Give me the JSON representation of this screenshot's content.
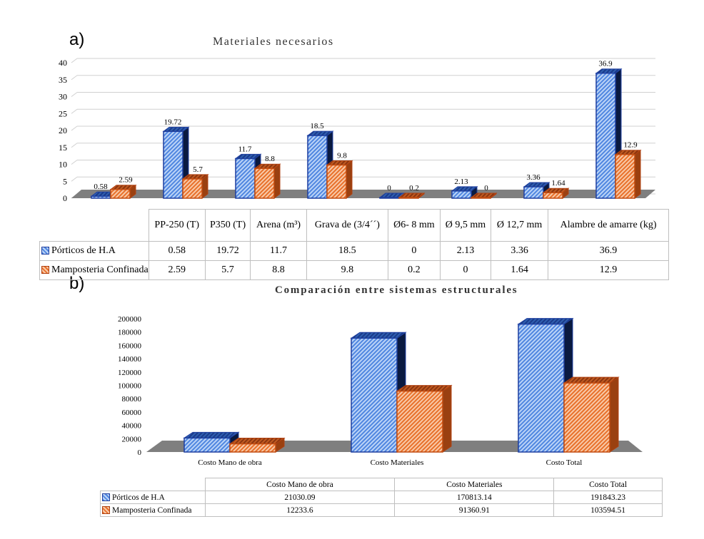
{
  "panels": {
    "a": "a)",
    "b": "b)"
  },
  "colors": {
    "blue": "#4f86e0",
    "blue_dark": "#1f3f9f",
    "orange": "#e8702a",
    "orange_dark": "#b04010",
    "floor": "#808080"
  },
  "chart_data": [
    {
      "type": "bar",
      "title": "Materiales necesarios",
      "categories": [
        "PP-250 (T)",
        "P350 (T)",
        "Arena (m³)",
        "Grava de (3/4´´)",
        "Ø6- 8 mm",
        "Ø 9,5 mm",
        "Ø 12,7 mm",
        "Alambre de amarre (kg)"
      ],
      "series": [
        {
          "name": "Pórticos de H.A",
          "values": [
            0.58,
            19.72,
            11.7,
            18.5,
            0,
            2.13,
            3.36,
            36.9
          ],
          "labels": [
            "0.58",
            "19.72",
            "11.7",
            "18.5",
            "0",
            "2.13",
            "3.36",
            "36.9"
          ]
        },
        {
          "name": "Mamposteria Confinada",
          "values": [
            2.59,
            5.7,
            8.8,
            9.8,
            0.2,
            0,
            1.64,
            12.9
          ],
          "labels": [
            "2.59",
            "5.7",
            "8.8",
            "9.8",
            "0.2",
            "0",
            "1.64",
            "12.9"
          ]
        }
      ],
      "ylim": [
        0,
        40
      ],
      "yticks": [
        "0",
        "5",
        "10",
        "15",
        "20",
        "25",
        "30",
        "35",
        "40"
      ],
      "grid": true,
      "legend": "data-table"
    },
    {
      "type": "bar",
      "title": "Comparación entre sistemas estructurales",
      "categories": [
        "Costo Mano de obra",
        "Costo Materiales",
        "Costo Total"
      ],
      "series": [
        {
          "name": "Pórticos de H.A",
          "values": [
            21030.09,
            170813.14,
            191843.23
          ],
          "labels": [
            "21030.09",
            "170813.14",
            "191843.23"
          ]
        },
        {
          "name": "Mamposteria Confinada",
          "values": [
            12233.6,
            91360.91,
            103594.51
          ],
          "labels": [
            "12233.6",
            "91360.91",
            "103594.51"
          ]
        }
      ],
      "ylim": [
        0,
        200000
      ],
      "yticks": [
        "0",
        "20000",
        "40000",
        "60000",
        "80000",
        "100000",
        "120000",
        "140000",
        "160000",
        "180000",
        "200000"
      ],
      "grid": false,
      "legend": "data-table"
    }
  ]
}
